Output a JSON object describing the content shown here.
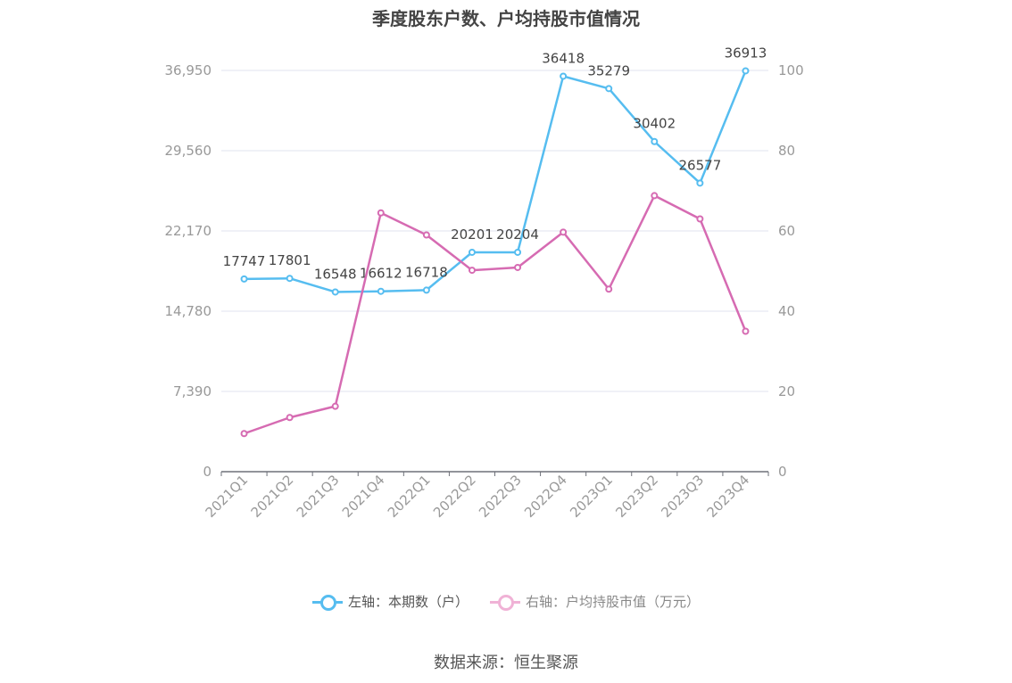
{
  "chart_data": {
    "type": "line",
    "title": "季度股东户数、户均持股市值情况",
    "categories": [
      "2021Q1",
      "2021Q2",
      "2021Q3",
      "2021Q4",
      "2022Q1",
      "2022Q2",
      "2022Q3",
      "2022Q4",
      "2023Q1",
      "2023Q2",
      "2023Q3",
      "2023Q4"
    ],
    "left_axis": {
      "ticks": [
        "0",
        "7,390",
        "14,780",
        "22,170",
        "29,560",
        "36,950"
      ],
      "ylim": [
        0,
        36950
      ]
    },
    "right_axis": {
      "ticks": [
        "0",
        "20",
        "40",
        "60",
        "80",
        "100"
      ],
      "ylim": [
        0,
        100
      ]
    },
    "grid": true,
    "legend_position": "bottom",
    "series": [
      {
        "name": "左轴：本期数（户）",
        "axis": "left",
        "color": "#56bdf0",
        "values": [
          17747,
          17801,
          16548,
          16612,
          16718,
          20201,
          20204,
          36418,
          35279,
          30402,
          26577,
          36913
        ],
        "labels": [
          "17747",
          "17801",
          "16548",
          "16612",
          "16718",
          "20201",
          "20204",
          "36418",
          "35279",
          "30402",
          "26577",
          "36913"
        ]
      },
      {
        "name": "右轴：户均持股市值（万元）",
        "axis": "right",
        "color": "#d66bb2",
        "values": [
          9.5,
          13.5,
          16.3,
          64.5,
          59.0,
          50.2,
          50.9,
          59.7,
          45.5,
          68.8,
          63.0,
          35.0
        ]
      }
    ]
  },
  "source": "数据来源：恒生聚源"
}
